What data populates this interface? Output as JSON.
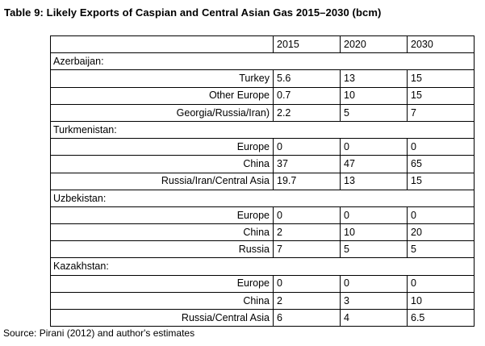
{
  "title": "Table 9: Likely Exports of Caspian and Central Asian Gas 2015–2030 (bcm)",
  "columns": [
    "2015",
    "2020",
    "2030"
  ],
  "groups": [
    {
      "name": "Azerbaijan:",
      "rows": [
        {
          "label": "Turkey",
          "values": [
            "5.6",
            "13",
            "15"
          ]
        },
        {
          "label": "Other Europe",
          "values": [
            "0.7",
            "10",
            "15"
          ]
        },
        {
          "label": "Georgia/Russia/Iran)",
          "values": [
            "2.2",
            "5",
            "7"
          ]
        }
      ]
    },
    {
      "name": "Turkmenistan:",
      "rows": [
        {
          "label": "Europe",
          "values": [
            "0",
            "0",
            "0"
          ]
        },
        {
          "label": "China",
          "values": [
            "37",
            "47",
            "65"
          ]
        },
        {
          "label": "Russia/Iran/Central Asia",
          "values": [
            "19.7",
            "13",
            "15"
          ]
        }
      ]
    },
    {
      "name": "Uzbekistan:",
      "rows": [
        {
          "label": "Europe",
          "values": [
            "0",
            "0",
            "0"
          ]
        },
        {
          "label": "China",
          "values": [
            "2",
            "10",
            "20"
          ]
        },
        {
          "label": "Russia",
          "values": [
            "7",
            "5",
            "5"
          ]
        }
      ]
    },
    {
      "name": "Kazakhstan:",
      "rows": [
        {
          "label": "Europe",
          "values": [
            "0",
            "0",
            "0"
          ]
        },
        {
          "label": "China",
          "values": [
            "2",
            "3",
            "10"
          ]
        },
        {
          "label": "Russia/Central Asia",
          "values": [
            "6",
            "4",
            "6.5"
          ]
        }
      ]
    }
  ],
  "source": "Source: Pirani (2012) and author's estimates"
}
